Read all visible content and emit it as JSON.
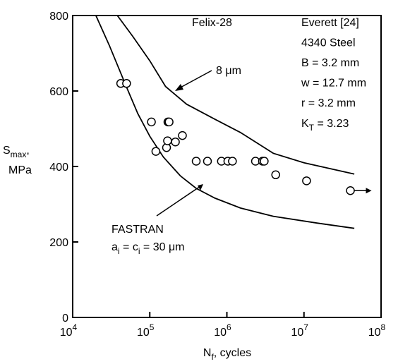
{
  "chart_data": {
    "type": "scatter",
    "x_scale": "log",
    "y_scale": "linear",
    "xlim": [
      10000,
      100000000
    ],
    "ylim": [
      0,
      800
    ],
    "x_ticks": [
      {
        "value": 10000,
        "base": "10",
        "exp": "4"
      },
      {
        "value": 100000,
        "base": "10",
        "exp": "5"
      },
      {
        "value": 1000000,
        "base": "10",
        "exp": "6"
      },
      {
        "value": 10000000,
        "base": "10",
        "exp": "7"
      },
      {
        "value": 100000000,
        "base": "10",
        "exp": "8"
      }
    ],
    "y_ticks": [
      0,
      200,
      400,
      600,
      800
    ],
    "xlabel": {
      "main": "N",
      "sub": "f",
      "rest": ", cycles"
    },
    "ylabel": {
      "line1_main": "S",
      "line1_sub": "max",
      "line1_rest": ",",
      "line2": "MPa"
    },
    "grid": false,
    "series": [
      {
        "type": "scatter",
        "marker": "open-circle",
        "points": [
          [
            42000,
            620
          ],
          [
            50000,
            620
          ],
          [
            105000,
            518
          ],
          [
            120000,
            440
          ],
          [
            165000,
            450
          ],
          [
            170000,
            468
          ],
          [
            172000,
            518
          ],
          [
            178000,
            518
          ],
          [
            215000,
            465
          ],
          [
            265000,
            482
          ],
          [
            400000,
            414
          ],
          [
            560000,
            414
          ],
          [
            850000,
            414
          ],
          [
            1030000,
            414
          ],
          [
            1180000,
            414
          ],
          [
            2350000,
            414
          ],
          [
            2900000,
            414
          ],
          [
            3050000,
            414
          ],
          [
            4300000,
            378
          ],
          [
            10800000,
            362
          ],
          [
            40000000,
            336
          ]
        ],
        "runout_index": 20
      },
      {
        "type": "line",
        "label_key": "label_fastran",
        "points": [
          [
            20000,
            800
          ],
          [
            30000,
            720
          ],
          [
            50000,
            610
          ],
          [
            70000,
            540
          ],
          [
            100000,
            480
          ],
          [
            150000,
            425
          ],
          [
            250000,
            375
          ],
          [
            400000,
            342
          ],
          [
            700000,
            316
          ],
          [
            1500000,
            290
          ],
          [
            4000000,
            268
          ],
          [
            15000000,
            250
          ],
          [
            45000000,
            236
          ]
        ]
      },
      {
        "type": "line",
        "label_key": "label_8um",
        "points": [
          [
            38000,
            800
          ],
          [
            60000,
            745
          ],
          [
            100000,
            680
          ],
          [
            160000,
            612
          ],
          [
            300000,
            565
          ],
          [
            700000,
            525
          ],
          [
            1500000,
            490
          ],
          [
            4000000,
            435
          ],
          [
            10000000,
            410
          ],
          [
            45000000,
            380
          ]
        ]
      }
    ],
    "annotations": {
      "material": "Felix-28",
      "source": [
        "Everett [24]",
        "4340 Steel",
        "B = 3.2 mm",
        "w = 12.7 mm",
        "r = 3.2 mm"
      ],
      "kt": {
        "main": "K",
        "sub": "T",
        "rest": " = 3.23"
      },
      "label_8um": "8 μm",
      "label_fastran": "FASTRAN",
      "fastran_ai": {
        "a": "a",
        "a_sub": "i",
        "c": " = c",
        "c_sub": "i",
        "rest": " = 30 μm"
      }
    }
  }
}
